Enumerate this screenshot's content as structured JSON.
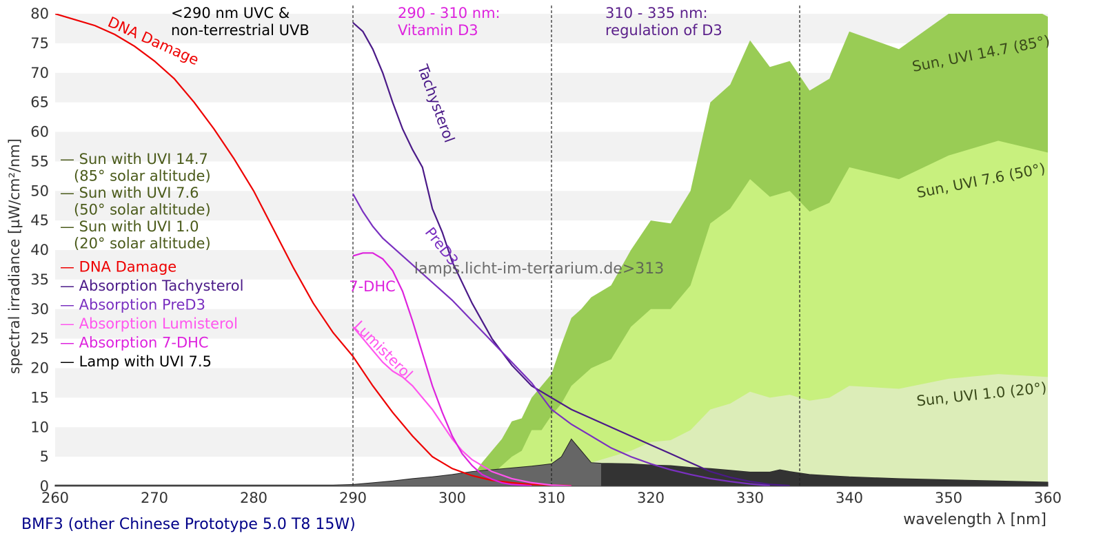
{
  "chart_data": {
    "type": "area",
    "ylabel": "spectral irradiance [µW/cm²/nm]",
    "xlabel": "wavelength λ [nm]",
    "xlim": [
      260,
      360
    ],
    "ylim": [
      0,
      80
    ],
    "x_ticks": [
      260,
      270,
      280,
      290,
      300,
      310,
      320,
      330,
      340,
      350,
      360
    ],
    "y_ticks": [
      0,
      5,
      10,
      15,
      20,
      25,
      30,
      35,
      40,
      45,
      50,
      55,
      60,
      65,
      70,
      75,
      80
    ],
    "grid": "horizontal alternating bands",
    "footer": "BMF3 (other Chinese Prototype 5.0 T8 15W)",
    "watermark": "lamps.licht-im-terrarium.de>313",
    "regions": [
      {
        "x": 290,
        "label_lines": [
          "<290 nm UVC &",
          "non-terrestrial UVB"
        ],
        "color": "#000000"
      },
      {
        "x": 310,
        "label_lines": [
          "290 - 310 nm:",
          "Vitamin D3"
        ],
        "color": "#dd22dd"
      },
      {
        "x": 335,
        "label_lines": [
          "310 - 335 nm:",
          "regulation of D3"
        ],
        "color": "#5a1f8a"
      }
    ],
    "legend": [
      {
        "lines": [
          "— Sun with UVI 14.7",
          "  (85° solar altitude)"
        ],
        "color": "#4a5a1a"
      },
      {
        "lines": [
          "— Sun with UVI 7.6",
          "  (50° solar altitude)"
        ],
        "color": "#4a5a1a"
      },
      {
        "lines": [
          "— Sun with UVI 1.0",
          "  (20° solar altitude)"
        ],
        "color": "#4a5a1a"
      },
      {
        "lines": [
          "— DNA Damage"
        ],
        "color": "#ee0000"
      },
      {
        "lines": [
          "— Absorption Tachysterol"
        ],
        "color": "#4b1a88"
      },
      {
        "lines": [
          "— Absorption PreD3"
        ],
        "color": "#7a30c0"
      },
      {
        "lines": [
          "— Absorption Lumisterol"
        ],
        "color": "#ff55ee"
      },
      {
        "lines": [
          "— Absorption 7-DHC"
        ],
        "color": "#dd22dd"
      },
      {
        "lines": [
          "— Lamp with UVI 7.5"
        ],
        "color": "#000000"
      }
    ],
    "areas": [
      {
        "name": "Sun, UVI 14.7 (85°)",
        "color": "#99cc55",
        "label_color": "#3a4a1a",
        "label_pos": [
          352,
          72
        ],
        "label_rot": -11,
        "points": [
          [
            300,
            0
          ],
          [
            302,
            1.5
          ],
          [
            303,
            4
          ],
          [
            304,
            6
          ],
          [
            305,
            8
          ],
          [
            306,
            11
          ],
          [
            307,
            11.5
          ],
          [
            308,
            15
          ],
          [
            309,
            17
          ],
          [
            310,
            19
          ],
          [
            311,
            24
          ],
          [
            312,
            28.5
          ],
          [
            313,
            30
          ],
          [
            314,
            32
          ],
          [
            316,
            34
          ],
          [
            318,
            40
          ],
          [
            320,
            45
          ],
          [
            322,
            44.5
          ],
          [
            324,
            50
          ],
          [
            326,
            65
          ],
          [
            328,
            68
          ],
          [
            330,
            75.5
          ],
          [
            332,
            71
          ],
          [
            334,
            72
          ],
          [
            336,
            67
          ],
          [
            338,
            69
          ],
          [
            340,
            77
          ],
          [
            345,
            74
          ],
          [
            350,
            80
          ],
          [
            355,
            84
          ],
          [
            360,
            79.5
          ],
          [
            360,
            0
          ]
        ]
      },
      {
        "name": "Sun, UVI 7.6 (50°)",
        "color": "#c8f07e",
        "label_color": "#3a4a1a",
        "label_pos": [
          352,
          50.5
        ],
        "label_rot": -11,
        "points": [
          [
            300,
            0
          ],
          [
            302,
            1
          ],
          [
            304,
            2
          ],
          [
            306,
            5
          ],
          [
            307,
            6
          ],
          [
            308,
            9.5
          ],
          [
            309,
            9.5
          ],
          [
            310,
            12
          ],
          [
            311,
            14
          ],
          [
            312,
            17
          ],
          [
            314,
            20
          ],
          [
            316,
            21.5
          ],
          [
            318,
            27
          ],
          [
            320,
            30
          ],
          [
            322,
            30
          ],
          [
            324,
            34
          ],
          [
            326,
            44.5
          ],
          [
            328,
            47
          ],
          [
            330,
            52
          ],
          [
            332,
            49
          ],
          [
            334,
            50
          ],
          [
            336,
            46.5
          ],
          [
            338,
            48
          ],
          [
            340,
            54
          ],
          [
            345,
            52
          ],
          [
            350,
            56
          ],
          [
            355,
            58.5
          ],
          [
            360,
            56.5
          ],
          [
            360,
            0
          ]
        ]
      },
      {
        "name": "Sun, UVI 1.0 (20°)",
        "color": "#dcedb8",
        "label_color": "#3a4a1a",
        "label_pos": [
          352,
          14.5
        ],
        "label_rot": -6,
        "points": [
          [
            300,
            0
          ],
          [
            304,
            0.3
          ],
          [
            306,
            0.6
          ],
          [
            308,
            1.2
          ],
          [
            310,
            2
          ],
          [
            312,
            3
          ],
          [
            314,
            4
          ],
          [
            316,
            5
          ],
          [
            318,
            6
          ],
          [
            320,
            7.5
          ],
          [
            322,
            7.8
          ],
          [
            324,
            9.5
          ],
          [
            326,
            13
          ],
          [
            328,
            14
          ],
          [
            330,
            16
          ],
          [
            332,
            15
          ],
          [
            334,
            15.5
          ],
          [
            336,
            14.5
          ],
          [
            338,
            15
          ],
          [
            340,
            17
          ],
          [
            345,
            16.5
          ],
          [
            350,
            18.2
          ],
          [
            355,
            19
          ],
          [
            360,
            18.5
          ],
          [
            360,
            0
          ]
        ]
      }
    ],
    "lamp": {
      "name": "Lamp with UVI 7.5",
      "fill": "#666666",
      "fill_dark": "#333333",
      "dark_from": 315,
      "points": [
        [
          260,
          0.2
        ],
        [
          270,
          0.2
        ],
        [
          280,
          0.2
        ],
        [
          288,
          0.2
        ],
        [
          290,
          0.3
        ],
        [
          292,
          0.6
        ],
        [
          294,
          0.9
        ],
        [
          296,
          1.3
        ],
        [
          298,
          1.6
        ],
        [
          300,
          2
        ],
        [
          302,
          2.5
        ],
        [
          304,
          2.8
        ],
        [
          306,
          3.1
        ],
        [
          308,
          3.4
        ],
        [
          309,
          3.6
        ],
        [
          310,
          3.8
        ],
        [
          311,
          5
        ],
        [
          312,
          8
        ],
        [
          313,
          6
        ],
        [
          314,
          4
        ],
        [
          315,
          3.9
        ],
        [
          318,
          3.8
        ],
        [
          320,
          3.6
        ],
        [
          322,
          3.5
        ],
        [
          324,
          3.2
        ],
        [
          326,
          3
        ],
        [
          328,
          2.7
        ],
        [
          330,
          2.4
        ],
        [
          332,
          2.4
        ],
        [
          333,
          2.8
        ],
        [
          334,
          2.5
        ],
        [
          336,
          2
        ],
        [
          338,
          1.8
        ],
        [
          340,
          1.6
        ],
        [
          345,
          1.3
        ],
        [
          350,
          1.1
        ],
        [
          355,
          0.9
        ],
        [
          360,
          0.7
        ]
      ]
    },
    "lines": [
      {
        "name": "DNA Damage",
        "color": "#ee0000",
        "label": "DNA Damage",
        "label_pos": [
          265.2,
          78
        ],
        "label_rot": 24,
        "points": [
          [
            260,
            80
          ],
          [
            262,
            79
          ],
          [
            264,
            78
          ],
          [
            266,
            76.5
          ],
          [
            268,
            74.5
          ],
          [
            270,
            72
          ],
          [
            272,
            69
          ],
          [
            274,
            65
          ],
          [
            276,
            60.5
          ],
          [
            278,
            55.5
          ],
          [
            280,
            50
          ],
          [
            282,
            43.5
          ],
          [
            284,
            37
          ],
          [
            286,
            31
          ],
          [
            288,
            26
          ],
          [
            290,
            22
          ],
          [
            292,
            17
          ],
          [
            294,
            12.5
          ],
          [
            296,
            8.5
          ],
          [
            298,
            5
          ],
          [
            300,
            3
          ],
          [
            302,
            1.8
          ],
          [
            304,
            1
          ],
          [
            306,
            0.6
          ],
          [
            308,
            0.3
          ],
          [
            310,
            0.2
          ],
          [
            312,
            0.1
          ]
        ]
      },
      {
        "name": "Absorption Tachysterol",
        "color": "#4b1a88",
        "label": "Tachysterol",
        "label_pos": [
          296.5,
          71
        ],
        "label_rot": 70,
        "points": [
          [
            290,
            78.5
          ],
          [
            291,
            77
          ],
          [
            292,
            74
          ],
          [
            293,
            70
          ],
          [
            294,
            65
          ],
          [
            295,
            60.5
          ],
          [
            296,
            57
          ],
          [
            297,
            54
          ],
          [
            298,
            47
          ],
          [
            299,
            43
          ],
          [
            300,
            38
          ],
          [
            302,
            31
          ],
          [
            304,
            25
          ],
          [
            306,
            20.5
          ],
          [
            308,
            17
          ],
          [
            310,
            15
          ],
          [
            312,
            13
          ],
          [
            314,
            11.5
          ],
          [
            316,
            10
          ],
          [
            318,
            8.5
          ],
          [
            320,
            7
          ],
          [
            322,
            5.5
          ],
          [
            324,
            4
          ],
          [
            326,
            2.5
          ],
          [
            328,
            1.5
          ],
          [
            330,
            0.8
          ],
          [
            332,
            0.3
          ],
          [
            334,
            0.1
          ]
        ]
      },
      {
        "name": "Absorption PreD3",
        "color": "#7a30c0",
        "label": "PreD3",
        "label_pos": [
          297.2,
          43
        ],
        "label_rot": 52,
        "points": [
          [
            290,
            49.5
          ],
          [
            291,
            46.5
          ],
          [
            292,
            44
          ],
          [
            293,
            42
          ],
          [
            294,
            40.5
          ],
          [
            296,
            37.5
          ],
          [
            298,
            34.5
          ],
          [
            300,
            31.5
          ],
          [
            302,
            28
          ],
          [
            304,
            24.5
          ],
          [
            306,
            21
          ],
          [
            308,
            17.5
          ],
          [
            310,
            13
          ],
          [
            312,
            10.5
          ],
          [
            314,
            8.5
          ],
          [
            316,
            6.5
          ],
          [
            318,
            5
          ],
          [
            320,
            3.8
          ],
          [
            322,
            2.8
          ],
          [
            324,
            2
          ],
          [
            326,
            1.3
          ],
          [
            328,
            0.8
          ],
          [
            330,
            0.4
          ],
          [
            332,
            0.1
          ]
        ]
      },
      {
        "name": "Absorption Lumisterol",
        "color": "#ff55ee",
        "label": "Lumisterol",
        "label_pos": [
          290,
          27
        ],
        "label_rot": 45,
        "points": [
          [
            290,
            27
          ],
          [
            291,
            25
          ],
          [
            292,
            23
          ],
          [
            293,
            21
          ],
          [
            294,
            19.5
          ],
          [
            295,
            18.5
          ],
          [
            296,
            17
          ],
          [
            297,
            15
          ],
          [
            298,
            13
          ],
          [
            299,
            10.5
          ],
          [
            300,
            8
          ],
          [
            301,
            6
          ],
          [
            302,
            4.5
          ],
          [
            304,
            2.5
          ],
          [
            306,
            1.3
          ],
          [
            308,
            0.6
          ],
          [
            310,
            0.2
          ],
          [
            312,
            0.05
          ]
        ]
      },
      {
        "name": "Absorption 7-DHC",
        "color": "#dd22dd",
        "label": "7-DHC",
        "label_pos": [
          289.6,
          33
        ],
        "label_rot": 0,
        "points": [
          [
            290,
            39
          ],
          [
            291,
            39.5
          ],
          [
            292,
            39.5
          ],
          [
            293,
            38.5
          ],
          [
            294,
            36.5
          ],
          [
            295,
            33
          ],
          [
            296,
            28
          ],
          [
            297,
            22.5
          ],
          [
            298,
            17
          ],
          [
            299,
            12.5
          ],
          [
            300,
            8.5
          ],
          [
            301,
            5.5
          ],
          [
            302,
            3.5
          ],
          [
            303,
            2
          ],
          [
            304,
            1.2
          ],
          [
            305,
            0.6
          ],
          [
            306,
            0.3
          ],
          [
            308,
            0.1
          ]
        ]
      }
    ]
  }
}
